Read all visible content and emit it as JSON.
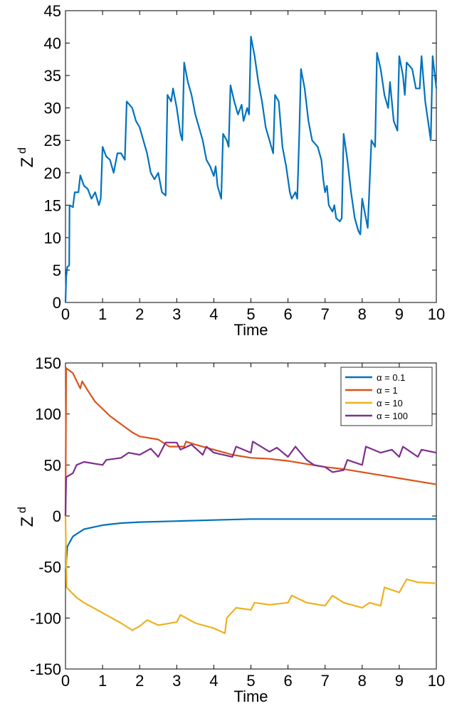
{
  "chart_data": [
    {
      "type": "line",
      "xlabel": "Time",
      "ylabel": "Z",
      "ylabel_sup": "d",
      "color": "#0072BD",
      "xlim": [
        0,
        10
      ],
      "xticks": [
        0,
        1,
        2,
        3,
        4,
        5,
        6,
        7,
        8,
        9,
        10
      ],
      "ylim": [
        0,
        45
      ],
      "yticks": [
        0,
        5,
        10,
        15,
        20,
        25,
        30,
        35,
        40,
        45
      ],
      "x": [
        0,
        0.02,
        0.05,
        0.1,
        0.11,
        0.2,
        0.25,
        0.35,
        0.4,
        0.5,
        0.6,
        0.7,
        0.8,
        0.9,
        0.95,
        1.0,
        1.1,
        1.2,
        1.3,
        1.4,
        1.5,
        1.6,
        1.65,
        1.8,
        1.9,
        2.0,
        2.1,
        2.2,
        2.3,
        2.4,
        2.5,
        2.6,
        2.7,
        2.75,
        2.85,
        2.9,
        3.0,
        3.1,
        3.15,
        3.2,
        3.3,
        3.4,
        3.5,
        3.6,
        3.7,
        3.8,
        3.9,
        4.0,
        4.05,
        4.1,
        4.2,
        4.25,
        4.35,
        4.4,
        4.45,
        4.55,
        4.65,
        4.75,
        4.8,
        4.9,
        4.95,
        5.0,
        5.1,
        5.2,
        5.3,
        5.4,
        5.5,
        5.6,
        5.65,
        5.75,
        5.85,
        5.95,
        6.0,
        6.05,
        6.1,
        6.2,
        6.25,
        6.3,
        6.35,
        6.45,
        6.55,
        6.65,
        6.8,
        6.9,
        6.95,
        7.0,
        7.05,
        7.1,
        7.2,
        7.25,
        7.3,
        7.4,
        7.45,
        7.5,
        7.6,
        7.7,
        7.75,
        7.8,
        7.9,
        7.95,
        8.0,
        8.1,
        8.15,
        8.25,
        8.35,
        8.4,
        8.5,
        8.6,
        8.7,
        8.75,
        8.85,
        8.95,
        9.0,
        9.1,
        9.15,
        9.2,
        9.35,
        9.45,
        9.55,
        9.6,
        9.7,
        9.8,
        9.85,
        9.9,
        10.0
      ],
      "values": [
        0,
        4,
        5.5,
        5.7,
        15,
        14.7,
        17,
        17,
        19.6,
        18,
        17.5,
        16,
        17,
        15,
        16,
        24,
        22.5,
        22,
        20,
        23,
        23,
        22,
        31,
        30,
        28,
        27,
        25,
        23,
        20,
        19,
        20,
        17,
        16.5,
        32,
        31,
        33,
        30,
        26,
        25,
        37,
        34,
        32,
        29,
        27,
        25,
        22,
        21,
        19.5,
        21,
        18,
        16,
        26,
        25,
        24,
        33.5,
        31,
        29,
        30.5,
        28,
        30,
        29,
        41,
        38,
        34,
        31,
        27,
        25,
        23,
        32,
        31,
        24,
        21,
        19,
        17,
        16,
        17,
        16,
        25,
        36,
        33,
        28,
        25,
        24,
        22,
        19,
        17,
        18,
        15,
        14,
        15,
        13,
        12.5,
        13,
        26,
        22,
        17,
        15,
        13,
        11,
        10.5,
        16,
        13,
        11.5,
        25,
        24,
        38.5,
        36,
        32,
        30,
        34,
        28,
        26.5,
        38,
        35,
        32,
        37,
        36,
        33,
        33,
        38,
        31,
        27,
        25,
        38,
        33
      ]
    },
    {
      "type": "line",
      "xlabel": "Time",
      "ylabel": "Z",
      "ylabel_sup": "d",
      "legend": "northeast",
      "xlim": [
        0,
        10
      ],
      "xticks": [
        0,
        1,
        2,
        3,
        4,
        5,
        6,
        7,
        8,
        9,
        10
      ],
      "ylim": [
        -150,
        150
      ],
      "yticks": [
        -150,
        -100,
        -50,
        0,
        50,
        100,
        150
      ],
      "series": [
        {
          "name": "α = 0.1",
          "color": "#0072BD",
          "x": [
            0,
            0.05,
            0.2,
            0.5,
            1,
            1.5,
            2,
            3,
            4,
            5,
            6,
            7,
            8,
            9,
            10
          ],
          "values": [
            -55,
            -30,
            -20,
            -13,
            -9,
            -7,
            -6,
            -5,
            -4,
            -3,
            -3,
            -3,
            -3,
            -3,
            -3
          ]
        },
        {
          "name": "α = 1",
          "color": "#D95319",
          "x": [
            0,
            0.02,
            0.2,
            0.4,
            0.45,
            0.6,
            0.8,
            1,
            1.2,
            1.5,
            1.8,
            2,
            2.5,
            2.8,
            3.2,
            3.25,
            3.5,
            4,
            4.5,
            5,
            5.5,
            6,
            6.5,
            7,
            7.5,
            8,
            8.5,
            9,
            9.5,
            10
          ],
          "values": [
            0,
            145,
            140,
            125,
            132,
            123,
            112,
            105,
            98,
            90,
            82,
            78,
            75,
            68,
            68,
            73,
            70,
            65,
            60,
            57,
            56,
            54,
            51,
            48,
            46,
            43,
            40,
            37,
            34,
            31
          ]
        },
        {
          "name": "α = 10",
          "color": "#EDB120",
          "x": [
            0,
            0.03,
            0.3,
            0.5,
            1,
            1.5,
            1.8,
            2,
            2.2,
            2.5,
            3,
            3.1,
            3.5,
            4,
            4.3,
            4.35,
            4.6,
            5,
            5.1,
            5.5,
            6,
            6.1,
            6.5,
            7,
            7.2,
            7.5,
            8,
            8.2,
            8.5,
            8.6,
            9,
            9.2,
            9.5,
            10
          ],
          "values": [
            0,
            -70,
            -80,
            -85,
            -95,
            -105,
            -112,
            -108,
            -102,
            -107,
            -104,
            -97,
            -105,
            -110,
            -115,
            -100,
            -90,
            -92,
            -85,
            -87,
            -85,
            -78,
            -85,
            -88,
            -78,
            -85,
            -90,
            -85,
            -88,
            -70,
            -75,
            -62,
            -65,
            -66
          ]
        },
        {
          "name": "α = 100",
          "color": "#7E2F8E",
          "x": [
            0,
            0.02,
            0.2,
            0.3,
            0.5,
            1,
            1.1,
            1.5,
            1.7,
            2,
            2.3,
            2.5,
            2.7,
            3,
            3.1,
            3.4,
            3.7,
            3.8,
            4,
            4.5,
            4.6,
            5,
            5.05,
            5.5,
            5.7,
            6,
            6.2,
            6.5,
            6.7,
            7,
            7.2,
            7.5,
            7.6,
            8,
            8.1,
            8.5,
            8.8,
            9,
            9.1,
            9.5,
            9.6,
            10
          ],
          "values": [
            0,
            38,
            42,
            50,
            53,
            50,
            55,
            57,
            62,
            60,
            66,
            58,
            72,
            72,
            65,
            70,
            60,
            68,
            62,
            58,
            68,
            62,
            73,
            63,
            67,
            58,
            68,
            55,
            50,
            48,
            43,
            45,
            55,
            50,
            68,
            62,
            65,
            58,
            68,
            58,
            65,
            62
          ]
        }
      ]
    }
  ]
}
